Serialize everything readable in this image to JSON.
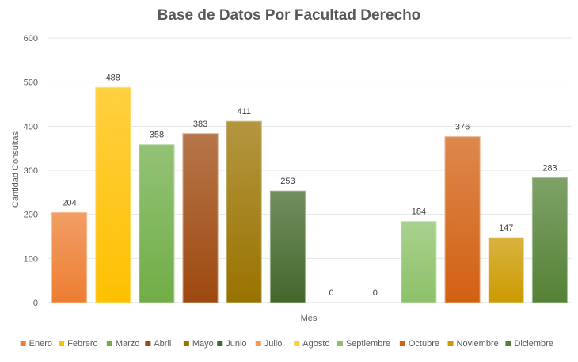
{
  "chart_data": {
    "type": "bar",
    "title": "Base de Datos Por Facultad Derecho",
    "xlabel": "Mes",
    "ylabel": "Cantidad Consultas",
    "ylim": [
      0,
      600
    ],
    "yticks": [
      0,
      100,
      200,
      300,
      400,
      500,
      600
    ],
    "grid": true,
    "legend_position": "bottom",
    "categories": [
      "Enero",
      "Febrero",
      "Marzo",
      "Abril",
      "Mayo",
      "Junio",
      "Julio",
      "Agosto",
      "Septiembre",
      "Octubre",
      "Noviembre",
      "Diciembre"
    ],
    "values": [
      204,
      488,
      358,
      383,
      411,
      253,
      0,
      0,
      184,
      376,
      147,
      283
    ],
    "colors": [
      "#ED7D31",
      "#FFC000",
      "#70AD47",
      "#9E480E",
      "#997300",
      "#43682B",
      "#F1975A",
      "#FFCD33",
      "#8CC168",
      "#D26012",
      "#CC9A00",
      "#548235"
    ]
  }
}
